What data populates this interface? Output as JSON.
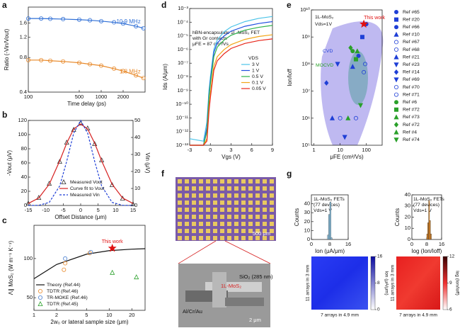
{
  "panels": [
    "a",
    "b",
    "c",
    "d",
    "e",
    "f",
    "g"
  ],
  "chart_data": [
    {
      "type": "line",
      "xlog": true,
      "ylog": true,
      "xlabel": "Time delay (ps)",
      "ylabel": "Ratio (-Vin/Vout)",
      "xlim": [
        100,
        4000
      ],
      "ylim": [
        0.4,
        2.2
      ],
      "xticks": [
        100,
        500,
        1000,
        2000
      ],
      "yticks": [
        0.4,
        0.8,
        1.2,
        1.6
      ],
      "legend": "inline",
      "series": [
        {
          "name": "10.9 MHz",
          "color": "#2f6fd6",
          "line": true,
          "marker": "circle-open",
          "x": [
            100,
            150,
            200,
            300,
            500,
            700,
            1000,
            1500,
            2000,
            3000,
            3800
          ],
          "values": [
            1.75,
            1.75,
            1.74,
            1.73,
            1.71,
            1.69,
            1.66,
            1.62,
            1.58,
            1.5,
            1.44
          ]
        },
        {
          "name": "1.8 MHz",
          "color": "#e8892a",
          "line": true,
          "marker": "circle-open",
          "x": [
            100,
            150,
            200,
            300,
            500,
            700,
            1000,
            1500,
            2000,
            3000,
            3800
          ],
          "values": [
            0.76,
            0.76,
            0.75,
            0.74,
            0.72,
            0.7,
            0.68,
            0.64,
            0.61,
            0.56,
            0.53
          ]
        }
      ]
    },
    {
      "type": "line",
      "xlabel": "Offset Distance (μm)",
      "ylabel": "-Vout (μV)",
      "y2label": "Vin (μV)",
      "xlim": [
        -15,
        15
      ],
      "ylim": [
        0,
        120
      ],
      "y2lim": [
        0,
        50
      ],
      "xticks": [
        -15,
        -10,
        -5,
        0,
        5,
        10,
        15
      ],
      "yticks": [
        0,
        20,
        40,
        60,
        80,
        100,
        120
      ],
      "y2ticks": [
        0,
        10,
        20,
        30,
        40,
        50
      ],
      "legend": "lower center",
      "series": [
        {
          "name": "Measured Vout",
          "color": "#333333",
          "line": false,
          "marker": "triangle-open",
          "x": [
            -15,
            -12,
            -9,
            -6,
            -4,
            -2,
            0,
            2,
            4,
            6,
            9,
            12,
            15
          ],
          "values": [
            3,
            11,
            31,
            62,
            89,
            107,
            116,
            109,
            87,
            64,
            29,
            10,
            2
          ]
        },
        {
          "name": "Curve fit to Vout",
          "color": "#d62020",
          "line": true,
          "x": [
            -15,
            -12,
            -9,
            -6,
            -4,
            -2,
            0,
            2,
            4,
            6,
            9,
            12,
            15
          ],
          "values": [
            2.8,
            10.6,
            30,
            63,
            88,
            108,
            115,
            108,
            88,
            63,
            30,
            10.6,
            2.8
          ]
        },
        {
          "name": "Measured Vin",
          "color": "#1f3fd6",
          "line": true,
          "dash": true,
          "axis": "y2",
          "x": [
            -15,
            -12,
            -9,
            -6,
            -4,
            -2,
            0,
            2,
            4,
            6,
            9,
            12,
            15
          ],
          "values": [
            0,
            0.1,
            1.8,
            11.5,
            26,
            42.5,
            50,
            42.5,
            26,
            11.5,
            1.8,
            0.1,
            0
          ]
        }
      ]
    },
    {
      "type": "scatter",
      "xlog": true,
      "ylog": true,
      "xlabel": "2w₀ or lateral sample size (μm)",
      "ylabel": "Λ∥ MoS₂ (W m⁻¹ K⁻¹)",
      "xlim": [
        1,
        30
      ],
      "ylim": [
        40,
        180
      ],
      "xticks": [
        1,
        2,
        5,
        10,
        20
      ],
      "yticks": [
        50,
        100
      ],
      "legend": "lower left",
      "highlight": {
        "label": "This work",
        "x": 11,
        "y": 120,
        "color": "#e01010"
      },
      "series": [
        {
          "name": "Theory (Ref.44)",
          "color": "#111111",
          "line": true,
          "x": [
            1,
            2,
            5,
            10,
            20,
            30
          ],
          "values": [
            70,
            90,
            108,
            115,
            118,
            119
          ]
        },
        {
          "name": "TDTR (Ref.46)",
          "color": "#e8892a",
          "marker": "circle-open",
          "x": [
            2.5,
            2.6,
            5.5
          ],
          "values": [
            82,
            92,
            110
          ]
        },
        {
          "name": "TR-MOKE (Ref.46)",
          "color": "#4a7fd0",
          "marker": "circle-open",
          "x": [
            2.6,
            5.7
          ],
          "values": [
            100,
            112
          ]
        },
        {
          "name": "TDTR (Ref.45)",
          "color": "#2aa02a",
          "marker": "triangle-open",
          "x": [
            11,
            23
          ],
          "values": [
            78,
            72
          ]
        }
      ]
    },
    {
      "type": "line",
      "ylog": true,
      "xlabel": "Vgs (V)",
      "ylabel": "Ids (A/μm)",
      "xlim": [
        -3,
        9
      ],
      "ylim": [
        1e-13,
        0.001
      ],
      "xticks": [
        -3,
        0,
        3,
        6,
        9
      ],
      "yticks": [
        {
          "value": 1e-13,
          "label": "10⁻¹³"
        },
        {
          "value": 1e-12,
          "label": "10⁻¹²"
        },
        {
          "value": 1e-11,
          "label": "10⁻¹¹"
        },
        {
          "value": 1e-10,
          "label": "10⁻¹⁰"
        },
        {
          "value": 1e-09,
          "label": "10⁻⁹"
        },
        {
          "value": 1e-08,
          "label": "10⁻⁸"
        },
        {
          "value": 1e-07,
          "label": "10⁻⁷"
        },
        {
          "value": 1e-06,
          "label": "10⁻⁶"
        },
        {
          "value": 1e-05,
          "label": "10⁻⁵"
        },
        {
          "value": 0.0001,
          "label": "10⁻⁴"
        },
        {
          "value": 0.001,
          "label": "10⁻³"
        }
      ],
      "notes": [
        "hBN-encapsulate 1L-MoS₂ FET",
        "with Gr contacts",
        "μFE = 87 cm²/Vs"
      ],
      "legend": "center right",
      "legend_title": "VDS",
      "series": [
        {
          "name": "3 V",
          "color": "#4bc3e8",
          "line": true,
          "x": [
            -3,
            -1,
            -0.5,
            -0.2,
            0,
            0.5,
            1,
            2,
            3,
            5,
            7,
            9
          ],
          "values": [
            3e-13,
            2e-13,
            5e-12,
            1e-09,
            1e-08,
            1e-06,
            5e-06,
            2e-05,
            4.5e-05,
            0.00011,
            0.00019,
            0.00026
          ]
        },
        {
          "name": "1 V",
          "color": "#1f4fe0",
          "line": true,
          "x": [
            -3,
            -1,
            -0.5,
            -0.2,
            0,
            0.5,
            1,
            2,
            3,
            5,
            7,
            9
          ],
          "values": [
            1e-13,
            1e-13,
            2e-12,
            5e-10,
            5e-09,
            6e-07,
            3e-06,
            1e-05,
            2.2e-05,
            5e-05,
            8e-05,
            0.00011
          ]
        },
        {
          "name": "0.5 V",
          "color": "#2db34a",
          "line": true,
          "x": [
            -3,
            -1,
            -0.5,
            -0.2,
            0,
            0.5,
            1,
            2,
            3,
            5,
            7,
            9
          ],
          "values": [
            1e-13,
            1e-13,
            1e-12,
            3e-10,
            3e-09,
            3e-07,
            1.5e-06,
            5e-06,
            1.1e-05,
            2.6e-05,
            4.2e-05,
            5.8e-05
          ]
        },
        {
          "name": "0.1 V",
          "color": "#f2a516",
          "line": true,
          "x": [
            -3,
            -1,
            -0.5,
            -0.2,
            0,
            0.5,
            1,
            2,
            3,
            5,
            7,
            9
          ],
          "values": [
            1e-13,
            1e-13,
            3e-13,
            6e-11,
            6e-10,
            6e-08,
            3e-07,
            1e-06,
            2.3e-06,
            5.5e-06,
            9e-06,
            1.2e-05
          ]
        },
        {
          "name": "0.05 V",
          "color": "#e8261a",
          "line": true,
          "x": [
            -3,
            -1,
            -0.5,
            -0.2,
            0,
            0.5,
            1,
            2,
            3,
            5,
            7,
            9
          ],
          "values": [
            1e-13,
            1e-13,
            2e-13,
            3e-11,
            3e-10,
            3e-08,
            1.5e-07,
            5e-07,
            1.2e-06,
            2.8e-06,
            4.5e-06,
            6e-06
          ]
        }
      ]
    },
    {
      "type": "scatter",
      "xlog": true,
      "ylog": true,
      "xlabel": "μFE (cm²/Vs)",
      "ylabel": "Ion/Ioff",
      "xlim": [
        0.8,
        400
      ],
      "ylim": [
        100000,
        10000000000
      ],
      "xticks": [
        1,
        10,
        100
      ],
      "yticks": [
        {
          "value": 100000,
          "label": "10⁵"
        },
        {
          "value": 1000000,
          "label": "10⁶"
        },
        {
          "value": 10000000,
          "label": "10⁷"
        },
        {
          "value": 100000000,
          "label": "10⁸"
        },
        {
          "value": 1000000000,
          "label": "10⁹"
        },
        {
          "value": 10000000000,
          "label": "10¹⁰"
        }
      ],
      "notes": [
        "1L-MoS₂",
        "Vds=1V",
        "CVD",
        "MOCVD"
      ],
      "legend": "outside right",
      "highlight": {
        "label": "This work",
        "x": 80,
        "y": 3000000000,
        "color": "#e01010"
      },
      "series": [
        {
          "name": "Ref #65",
          "color": "#1f3fd6",
          "marker": "circle",
          "x": [
            100
          ],
          "values": [
            3000000000
          ]
        },
        {
          "name": "Ref #20",
          "color": "#1f3fd6",
          "marker": "square",
          "x": [
            70
          ],
          "values": [
            1000000000
          ]
        },
        {
          "name": "Ref #66",
          "color": "#1f3fd6",
          "marker": "circle",
          "x": [
            50
          ],
          "values": [
            200000000
          ]
        },
        {
          "name": "Ref #10",
          "color": "#1f3fd6",
          "marker": "triangle",
          "x": [
            30
          ],
          "values": [
            80000000
          ]
        },
        {
          "name": "Ref #67",
          "color": "#1f3fd6",
          "marker": "circle-open",
          "x": [
            40
          ],
          "values": [
            1000000
          ]
        },
        {
          "name": "Ref #68",
          "color": "#1f3fd6",
          "marker": "circle-open",
          "x": [
            10
          ],
          "values": [
            1000000
          ]
        },
        {
          "name": "Ref #21",
          "color": "#1f3fd6",
          "marker": "triangle",
          "x": [
            5
          ],
          "values": [
            1000000
          ]
        },
        {
          "name": "Ref #23",
          "color": "#1f3fd6",
          "marker": "triangle-down",
          "x": [
            15
          ],
          "values": [
            200000
          ]
        },
        {
          "name": "Ref #14",
          "color": "#1f3fd6",
          "marker": "diamond",
          "x": [
            3
          ],
          "values": [
            20000000
          ]
        },
        {
          "name": "Ref #69",
          "color": "#1f3fd6",
          "marker": "triangle-down",
          "x": [
            8
          ],
          "values": [
            100000000
          ]
        },
        {
          "name": "Ref #70",
          "color": "#1f3fd6",
          "marker": "circle-open",
          "x": [
            90
          ],
          "values": [
            100000000
          ]
        },
        {
          "name": "Ref #71",
          "color": "#1f3fd6",
          "marker": "circle-open",
          "x": [
            80
          ],
          "values": [
            50000000
          ]
        },
        {
          "name": "Ref #6",
          "color": "#2aa02a",
          "marker": "circle",
          "x": [
            30
          ],
          "values": [
            300000000
          ]
        },
        {
          "name": "Ref #72",
          "color": "#2aa02a",
          "marker": "square",
          "x": [
            40
          ],
          "values": [
            150000000
          ]
        },
        {
          "name": "Ref #73",
          "color": "#2aa02a",
          "marker": "triangle",
          "x": [
            45
          ],
          "values": [
            300000000
          ]
        },
        {
          "name": "Ref #72",
          "color": "#2aa02a",
          "marker": "diamond",
          "x": [
            25
          ],
          "values": [
            400000000
          ]
        },
        {
          "name": "Ref #4",
          "color": "#2aa02a",
          "marker": "triangle",
          "x": [
            20
          ],
          "values": [
            1000000
          ]
        },
        {
          "name": "Ref #74",
          "color": "#2aa02a",
          "marker": "triangle-down",
          "x": [
            60
          ],
          "values": [
            3000000
          ]
        }
      ]
    },
    {
      "type": "histogram",
      "xlabel": "Ion (μA/μm)",
      "ylabel": "Counts",
      "xlim": [
        0,
        16
      ],
      "ylim": [
        0,
        50
      ],
      "xticks": [
        0,
        8,
        16
      ],
      "yticks": [
        0,
        10,
        20,
        30,
        40
      ],
      "color": "#8ecdf0",
      "notes": [
        "1L-MoS₂ FETs",
        "(77 devices)",
        "Vds=1 V"
      ],
      "bins": [
        7,
        7.5,
        8,
        8.5,
        9
      ],
      "values": [
        5,
        28,
        42,
        2
      ]
    },
    {
      "type": "histogram",
      "xlabel": "log (Ion/Ioff)",
      "ylabel": "Counts",
      "xlim": [
        0,
        16
      ],
      "ylim": [
        0,
        40
      ],
      "xticks": [
        0,
        8,
        16
      ],
      "yticks": [
        0,
        10,
        20,
        30,
        40
      ],
      "color": "#f08c1e",
      "notes": [
        "1L-MoS₂ FETs",
        "(77 devices)",
        "Vds=1 V"
      ],
      "bins": [
        8,
        8.5,
        9,
        9.5,
        10,
        10.5
      ],
      "values": [
        5,
        15,
        35,
        17,
        5
      ]
    }
  ],
  "maps": [
    {
      "ylabel": "11 arrays in 3 mm",
      "xlabel": "7 arrays in 4.9 mm",
      "colorbar_label": "Ion (μA/μm)",
      "cbticks": [
        0,
        8,
        16
      ]
    },
    {
      "ylabel": "11 arrays in 3 mm",
      "xlabel": "7 arrays in 4.9 mm",
      "colorbar_label": "log (Ion/Ioff)",
      "cbticks": [
        6,
        9,
        12
      ]
    }
  ],
  "images": {
    "scale_optical": "500 μm",
    "oxide": "SiO₂ (285 nm)",
    "channel": "1L-MoS₂",
    "contacts": "Al/Cr/Au",
    "scale_sem": "2 μm"
  }
}
